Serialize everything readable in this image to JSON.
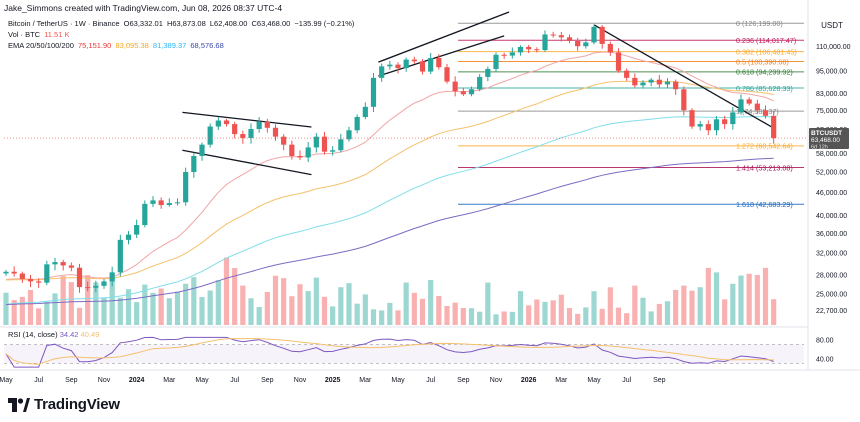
{
  "header": {
    "credit": "Jake_Simmons created with TradingView.com, Jun 08, 2026 08:37 UTC-4",
    "symbol": "Bitcoin / TetherUS · 1W · Binance",
    "ohlc_o": "O63,332.01",
    "ohlc_h": "H63,873.08",
    "ohlc_l": "L62,408.00",
    "ohlc_c": "C63,468.00",
    "change": "−135.99 (−0.21%)",
    "vol_label": "Vol · BTC",
    "vol_value": "11.51 K",
    "ema_label": "EMA 20/50/100/200",
    "ema_values": [
      "75,151.90",
      "83,095.38",
      "81,389.37",
      "68,576.68"
    ]
  },
  "colors": {
    "up": "#26a69a",
    "down": "#ef5350",
    "ema20": "#f2a5a5",
    "ema50": "#f5c16c",
    "ema100": "#80deea",
    "ema200": "#7e6bc4",
    "rsi": "#7e57c2",
    "price_tag": "#555555"
  },
  "currency": "USDT",
  "price_tag": {
    "symbol": "BTCUSDT",
    "price": "63,468.00",
    "countdown": "6d 12h"
  },
  "rsi": {
    "label": "RSI (14, close)",
    "value": "34.42",
    "ma_value": "40.49"
  },
  "logo": {
    "text": "TradingView"
  },
  "chart_data": {
    "type": "candlestick",
    "scale": "log",
    "ylim": [
      22000,
      135000
    ],
    "y_ticks": [
      "110,000.00",
      "95,000.00",
      "83,000.00",
      "75,000.00",
      "67,000.00",
      "58,000.00",
      "52,000.00",
      "46,000.00",
      "40,000.00",
      "36,000.00",
      "32,000.00",
      "28,000.00",
      "25,000.00",
      "22,700.00"
    ],
    "y_tick_values": [
      110000,
      95000,
      83000,
      75000,
      67000,
      58000,
      52000,
      46000,
      40000,
      36000,
      32000,
      28000,
      25000,
      22700
    ],
    "x_ticks": [
      "May",
      "Jul",
      "Sep",
      "Nov",
      "2024",
      "Mar",
      "May",
      "Jul",
      "Sep",
      "Nov",
      "2025",
      "Mar",
      "May",
      "Jul",
      "Sep",
      "Nov",
      "2026",
      "Mar",
      "May",
      "Jul",
      "Sep"
    ],
    "x_tick_months": [
      4,
      6,
      8,
      10,
      12,
      14,
      16,
      18,
      20,
      22,
      24,
      26,
      28,
      30,
      32,
      34,
      36,
      38,
      40,
      42,
      44
    ],
    "fib_levels": [
      {
        "label": "0 (126,199.00)",
        "price": 126199,
        "color": "#888888"
      },
      {
        "label": "0.236 (114,017.47)",
        "price": 114017,
        "color": "#c2185b"
      },
      {
        "label": "0.382 (106,481.45)",
        "price": 106481,
        "color": "#f9a825"
      },
      {
        "label": "0.5 (100,390.68)",
        "price": 100391,
        "color": "#f57f17"
      },
      {
        "label": "0.618 (94,299.92)",
        "price": 94300,
        "color": "#2e7d32"
      },
      {
        "label": "0.786 (85,628.33)",
        "price": 85628,
        "color": "#26a69a"
      },
      {
        "label": "1 (74,582.37)",
        "price": 74582,
        "color": "#888888"
      },
      {
        "label": "1.272 (60,542.64)",
        "price": 60543,
        "color": "#f9a825"
      },
      {
        "label": "1.414 (53,213.08)",
        "price": 53213,
        "color": "#ad1457"
      },
      {
        "label": "1.618 (42,683.29)",
        "price": 42683,
        "color": "#1565c0"
      }
    ],
    "series_close": [
      [
        4.0,
        28500
      ],
      [
        4.5,
        28200
      ],
      [
        5.0,
        27300
      ],
      [
        5.5,
        26900
      ],
      [
        6.0,
        26700
      ],
      [
        6.5,
        29800
      ],
      [
        7.0,
        30200
      ],
      [
        7.5,
        29600
      ],
      [
        8.0,
        29200
      ],
      [
        8.5,
        26000
      ],
      [
        9.0,
        25900
      ],
      [
        9.5,
        26200
      ],
      [
        10.0,
        26900
      ],
      [
        10.5,
        28400
      ],
      [
        11.0,
        34500
      ],
      [
        11.5,
        35600
      ],
      [
        12.0,
        37700
      ],
      [
        12.5,
        42800
      ],
      [
        13.0,
        43700
      ],
      [
        13.5,
        42500
      ],
      [
        14.0,
        43000
      ],
      [
        14.5,
        43200
      ],
      [
        15.0,
        51800
      ],
      [
        15.5,
        57000
      ],
      [
        16.0,
        61000
      ],
      [
        16.5,
        68000
      ],
      [
        17.0,
        70500
      ],
      [
        17.5,
        69000
      ],
      [
        18.0,
        65000
      ],
      [
        18.5,
        63500
      ],
      [
        19.0,
        67000
      ],
      [
        19.5,
        70000
      ],
      [
        20.0,
        67500
      ],
      [
        20.5,
        64000
      ],
      [
        21.0,
        61000
      ],
      [
        21.5,
        57000
      ],
      [
        22.0,
        56500
      ],
      [
        22.5,
        60000
      ],
      [
        23.0,
        64000
      ],
      [
        23.5,
        58500
      ],
      [
        24.0,
        59000
      ],
      [
        24.5,
        63000
      ],
      [
        25.0,
        66500
      ],
      [
        25.5,
        72000
      ],
      [
        26.0,
        76500
      ],
      [
        26.5,
        91000
      ],
      [
        27.0,
        97500
      ],
      [
        27.5,
        98500
      ],
      [
        28.0,
        96500
      ],
      [
        28.5,
        101500
      ],
      [
        29.0,
        100500
      ],
      [
        29.5,
        94500
      ],
      [
        30.0,
        102500
      ],
      [
        30.5,
        97000
      ],
      [
        31.0,
        89000
      ],
      [
        31.5,
        84000
      ],
      [
        32.0,
        82500
      ],
      [
        32.5,
        85000
      ],
      [
        33.0,
        91500
      ],
      [
        33.5,
        96000
      ],
      [
        34.0,
        104500
      ],
      [
        34.5,
        104000
      ],
      [
        35.0,
        106000
      ],
      [
        35.5,
        109500
      ],
      [
        36.0,
        108000
      ],
      [
        36.5,
        107500
      ],
      [
        37.0,
        118000
      ],
      [
        37.5,
        117500
      ],
      [
        38.0,
        116000
      ],
      [
        38.5,
        113500
      ],
      [
        39.0,
        110000
      ],
      [
        39.5,
        112500
      ],
      [
        40.0,
        123500
      ],
      [
        40.5,
        111500
      ],
      [
        41.0,
        106000
      ],
      [
        41.5,
        95000
      ],
      [
        42.0,
        91000
      ],
      [
        42.5,
        87000
      ],
      [
        43.0,
        88500
      ],
      [
        43.5,
        90000
      ],
      [
        44.0,
        87500
      ],
      [
        44.5,
        89000
      ],
      [
        45.0,
        85000
      ],
      [
        45.5,
        75000
      ],
      [
        46.0,
        68000
      ],
      [
        46.5,
        69000
      ],
      [
        47.0,
        66500
      ],
      [
        47.5,
        71000
      ],
      [
        48.0,
        69000
      ],
      [
        48.5,
        74000
      ],
      [
        49.0,
        80000
      ],
      [
        49.5,
        78000
      ],
      [
        50.0,
        75000
      ],
      [
        50.5,
        72500
      ],
      [
        51.0,
        63468
      ]
    ]
  }
}
